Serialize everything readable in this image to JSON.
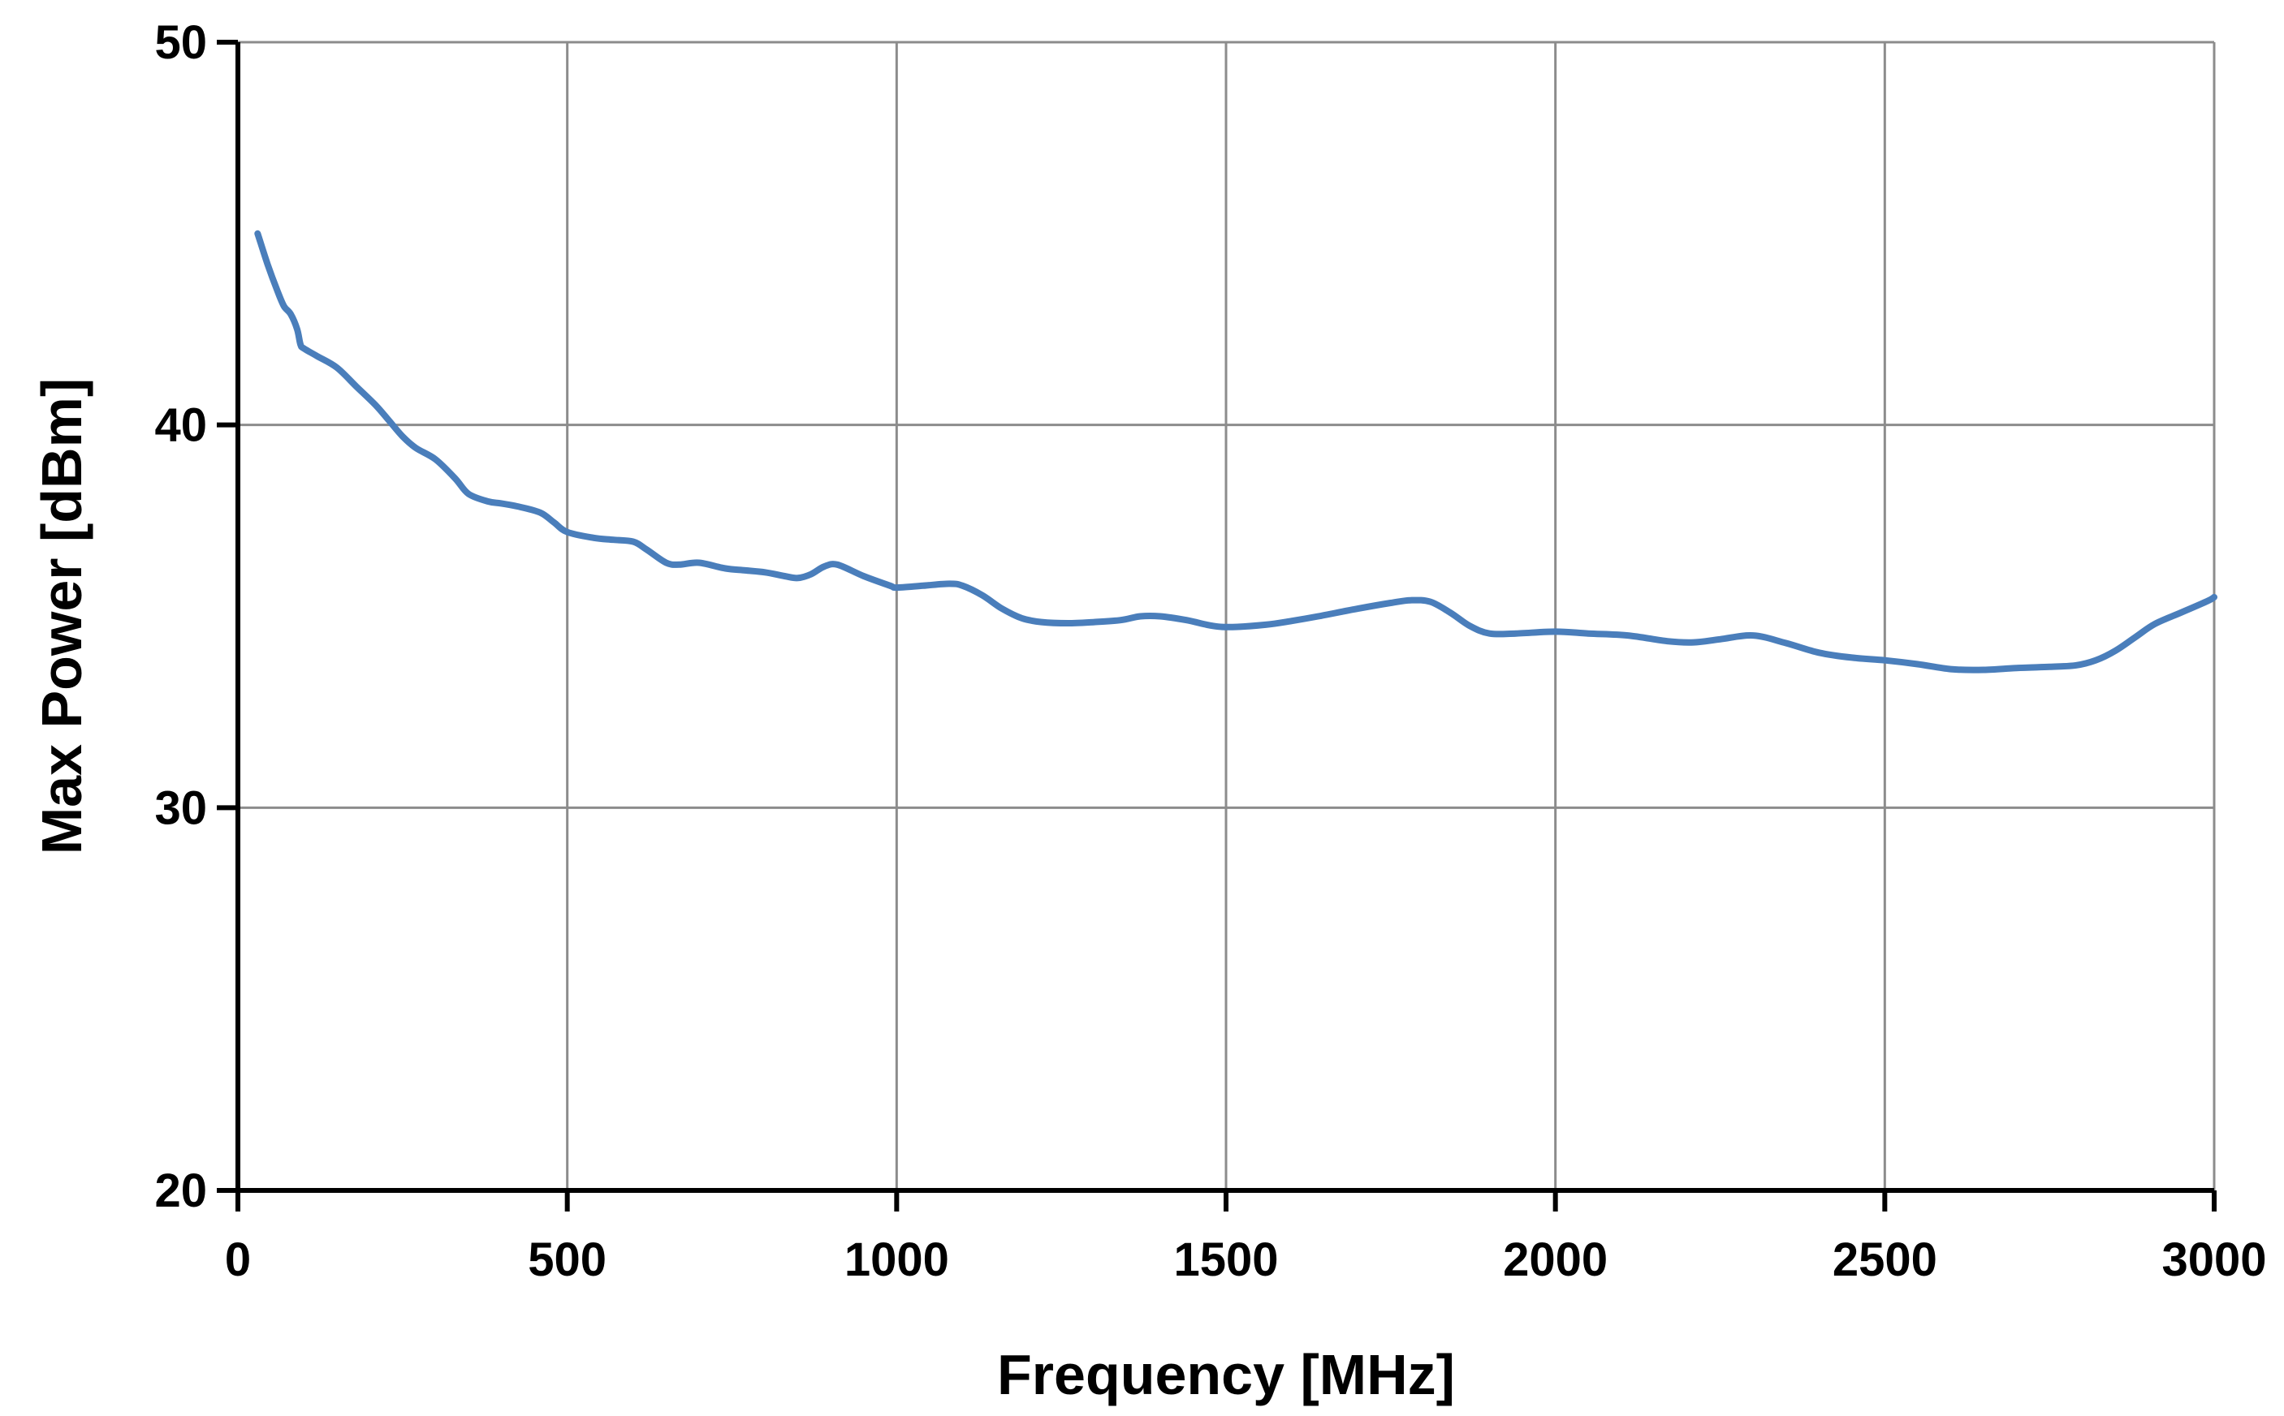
{
  "chart_data": {
    "type": "line",
    "title": "",
    "xlabel": "Frequency [MHz]",
    "ylabel": "Max Power [dBm]",
    "xlim": [
      0,
      3000
    ],
    "ylim": [
      20,
      50
    ],
    "xticks": [
      0,
      500,
      1000,
      1500,
      2000,
      2500,
      3000
    ],
    "yticks": [
      20,
      30,
      40,
      50
    ],
    "grid": true,
    "legend": "none",
    "colors": {
      "line": "#4a7ebb",
      "grid": "#8c8c8c",
      "axis": "#000000"
    },
    "series": [
      {
        "x": [
          30,
          45,
          60,
          70,
          80,
          90,
          95,
          100,
          120,
          150,
          180,
          210,
          230,
          250,
          270,
          300,
          330,
          350,
          380,
          400,
          430,
          460,
          480,
          500,
          540,
          570,
          600,
          620,
          650,
          670,
          700,
          740,
          770,
          800,
          830,
          850,
          870,
          890,
          910,
          950,
          990,
          1000,
          1040,
          1080,
          1100,
          1130,
          1160,
          1190,
          1220,
          1260,
          1300,
          1340,
          1370,
          1400,
          1440,
          1480,
          1510,
          1560,
          1600,
          1640,
          1700,
          1750,
          1780,
          1810,
          1840,
          1870,
          1900,
          1940,
          2000,
          2050,
          2110,
          2170,
          2210,
          2250,
          2300,
          2350,
          2400,
          2450,
          2500,
          2550,
          2600,
          2650,
          2700,
          2750,
          2790,
          2820,
          2850,
          2880,
          2910,
          2950,
          2990,
          3000
        ],
        "y": [
          45.0,
          44.2,
          43.5,
          43.1,
          42.9,
          42.5,
          42.1,
          42.0,
          41.8,
          41.5,
          41.0,
          40.5,
          40.1,
          39.7,
          39.4,
          39.1,
          38.6,
          38.2,
          38.0,
          37.95,
          37.85,
          37.7,
          37.45,
          37.2,
          37.05,
          37.0,
          36.95,
          36.75,
          36.4,
          36.35,
          36.4,
          36.25,
          36.2,
          36.15,
          36.05,
          36.0,
          36.1,
          36.3,
          36.35,
          36.05,
          35.8,
          35.75,
          35.8,
          35.85,
          35.8,
          35.55,
          35.2,
          34.95,
          34.85,
          34.82,
          34.85,
          34.9,
          35.0,
          35.0,
          34.9,
          34.75,
          34.72,
          34.78,
          34.88,
          35.0,
          35.2,
          35.35,
          35.42,
          35.38,
          35.1,
          34.75,
          34.55,
          34.55,
          34.6,
          34.55,
          34.5,
          34.35,
          34.32,
          34.4,
          34.5,
          34.3,
          34.05,
          33.92,
          33.85,
          33.75,
          33.62,
          33.6,
          33.65,
          33.68,
          33.72,
          33.85,
          34.1,
          34.45,
          34.8,
          35.1,
          35.4,
          35.5
        ]
      }
    ]
  }
}
